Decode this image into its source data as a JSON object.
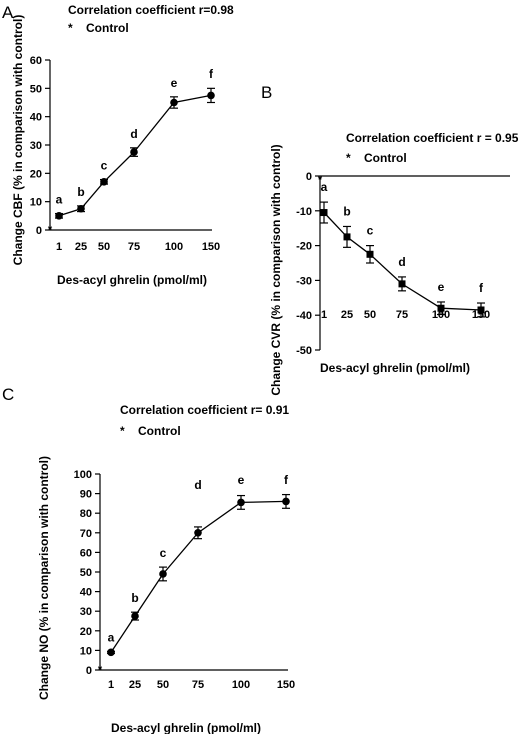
{
  "chart_data": [
    {
      "type": "line",
      "panel_label": "A",
      "annotation": "Correlation coefficient r=0.98",
      "control_marker": "*",
      "control_label": "Control",
      "xlabel": "Des-acyl ghrelin (pmol/ml)",
      "ylabel": "Change CBF (% in comparison with control)",
      "categories": [
        "1",
        "25",
        "50",
        "75",
        "100",
        "150"
      ],
      "values": [
        5,
        7.5,
        17,
        27.5,
        45,
        47.5
      ],
      "errors": [
        0.8,
        1,
        0.8,
        1.5,
        2,
        2.5
      ],
      "point_labels": [
        "a",
        "b",
        "c",
        "d",
        "e",
        "f"
      ],
      "marker": "circle",
      "ylim": [
        0,
        60
      ],
      "yticks": [
        0,
        10,
        20,
        30,
        40,
        50,
        60
      ]
    },
    {
      "type": "line",
      "panel_label": "B",
      "annotation": "Correlation coefficient r = 0.95",
      "control_marker": "*",
      "control_label": "Control",
      "xlabel": "Des-acyl ghrelin (pmol/ml)",
      "ylabel": "Change CVR (% in comparison with control)",
      "categories": [
        "1",
        "25",
        "50",
        "75",
        "100",
        "150"
      ],
      "values": [
        -10.5,
        -17.5,
        -22.5,
        -31,
        -38,
        -38.5
      ],
      "errors": [
        3,
        3,
        2.5,
        2,
        1.8,
        2
      ],
      "point_labels": [
        "a",
        "b",
        "c",
        "d",
        "e",
        "f"
      ],
      "marker": "square",
      "ylim": [
        -50,
        0
      ],
      "yticks": [
        0,
        -10,
        -20,
        -30,
        -40,
        -50
      ]
    },
    {
      "type": "line",
      "panel_label": "C",
      "annotation": "Correlation coefficient r= 0.91",
      "control_marker": "*",
      "control_label": "Control",
      "xlabel": "Des-acyl ghrelin (pmol/ml)",
      "ylabel": "Change NO (% in comparison with control)",
      "categories": [
        "1",
        "25",
        "50",
        "75",
        "100",
        "150"
      ],
      "values": [
        9,
        27.5,
        49,
        70,
        85.5,
        86
      ],
      "errors": [
        0.5,
        2,
        3.5,
        3,
        3.5,
        3.5
      ],
      "point_labels": [
        "a",
        "b",
        "c",
        "d",
        "e",
        "f"
      ],
      "marker": "circle",
      "ylim": [
        0,
        100
      ],
      "yticks": [
        0,
        10,
        20,
        30,
        40,
        50,
        60,
        70,
        80,
        90,
        100
      ]
    }
  ]
}
